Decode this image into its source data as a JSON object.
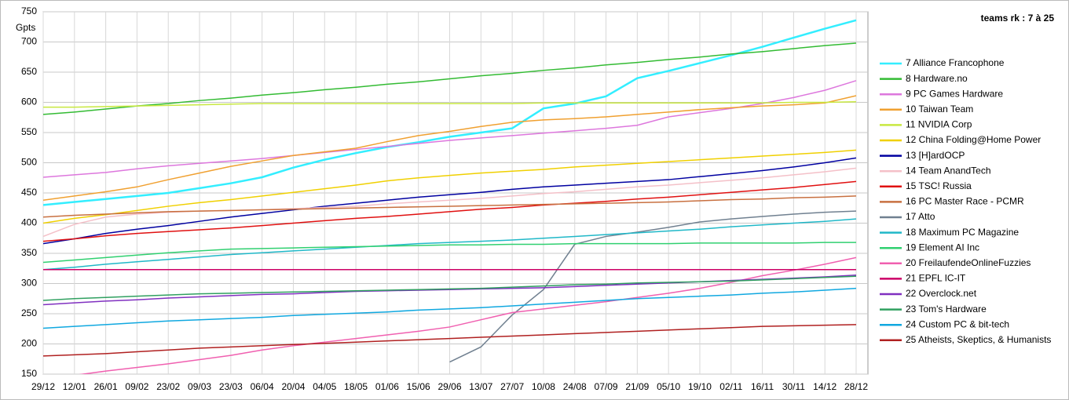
{
  "chart_data": {
    "type": "line",
    "title": "teams rk : 7 à 25",
    "y_label": "Gpts",
    "categories": [
      "29/12",
      "12/01",
      "26/01",
      "09/02",
      "23/02",
      "09/03",
      "23/03",
      "06/04",
      "20/04",
      "04/05",
      "18/05",
      "01/06",
      "15/06",
      "29/06",
      "13/07",
      "27/07",
      "10/08",
      "24/08",
      "07/09",
      "21/09",
      "05/10",
      "19/10",
      "02/11",
      "16/11",
      "30/11",
      "14/12",
      "28/12"
    ],
    "ylim": [
      150,
      750
    ],
    "yticks": [
      150,
      200,
      250,
      300,
      350,
      400,
      450,
      500,
      550,
      600,
      650,
      700,
      750
    ],
    "grid": true,
    "legend": "right",
    "series": [
      {
        "name": "7 Alliance Francophone",
        "color": "#33eeff",
        "values": [
          430,
          435,
          440,
          445,
          450,
          458,
          466,
          476,
          492,
          505,
          516,
          526,
          534,
          543,
          550,
          557,
          590,
          598,
          610,
          640,
          652,
          665,
          678,
          692,
          707,
          722,
          736
        ]
      },
      {
        "name": "8 Hardware.no",
        "color": "#33bb33",
        "values": [
          580,
          584,
          589,
          594,
          598,
          603,
          607,
          612,
          616,
          621,
          625,
          630,
          634,
          639,
          644,
          648,
          653,
          657,
          662,
          666,
          671,
          675,
          680,
          684,
          689,
          694,
          698
        ]
      },
      {
        "name": "9 PC Games Hardware",
        "color": "#dd77dd",
        "values": [
          476,
          480,
          484,
          490,
          495,
          499,
          503,
          507,
          512,
          517,
          522,
          527,
          532,
          537,
          541,
          545,
          549,
          553,
          557,
          562,
          576,
          583,
          590,
          598,
          608,
          620,
          636
        ]
      },
      {
        "name": "10 Taiwan Team",
        "color": "#f0a030",
        "values": [
          438,
          445,
          452,
          460,
          472,
          483,
          494,
          503,
          512,
          518,
          524,
          535,
          545,
          552,
          560,
          567,
          571,
          573,
          576,
          580,
          584,
          588,
          591,
          594,
          596,
          599,
          611
        ]
      },
      {
        "name": "11 NVIDIA Corp",
        "color": "#c8e840",
        "values": [
          592,
          592,
          593,
          594,
          595,
          596,
          597,
          598,
          598,
          598,
          598,
          598,
          598,
          598,
          598,
          598,
          599,
          599,
          599,
          599,
          599,
          599,
          599,
          599,
          600,
          600,
          601
        ]
      },
      {
        "name": "12 China Folding@Home Power",
        "color": "#f0d000",
        "values": [
          400,
          408,
          414,
          421,
          428,
          434,
          439,
          445,
          451,
          457,
          463,
          470,
          475,
          479,
          483,
          486,
          489,
          493,
          496,
          499,
          502,
          505,
          508,
          511,
          514,
          517,
          521
        ]
      },
      {
        "name": "13 [H]ardOCP",
        "color": "#0000a0",
        "values": [
          366,
          374,
          383,
          390,
          396,
          403,
          410,
          416,
          422,
          428,
          433,
          438,
          443,
          447,
          451,
          456,
          460,
          463,
          466,
          469,
          472,
          477,
          482,
          487,
          493,
          500,
          508
        ]
      },
      {
        "name": "14 Team AnandTech",
        "color": "#f4c0c8",
        "values": [
          378,
          398,
          410,
          415,
          418,
          420,
          421,
          422,
          424,
          426,
          428,
          432,
          435,
          438,
          441,
          445,
          449,
          452,
          456,
          460,
          463,
          467,
          471,
          475,
          480,
          485,
          491
        ]
      },
      {
        "name": "15 TSC! Russia",
        "color": "#e01010",
        "values": [
          370,
          374,
          379,
          383,
          386,
          389,
          392,
          396,
          400,
          404,
          408,
          411,
          415,
          419,
          423,
          426,
          430,
          433,
          436,
          440,
          443,
          447,
          451,
          455,
          459,
          464,
          469
        ]
      },
      {
        "name": "16 PC Master Race - PCMR",
        "color": "#c87040",
        "values": [
          410,
          413,
          415,
          417,
          419,
          420,
          421,
          422,
          423,
          424,
          425,
          426,
          427,
          428,
          429,
          430,
          431,
          432,
          433,
          434,
          435,
          437,
          439,
          440,
          442,
          443,
          445
        ]
      },
      {
        "name": "17 Atto",
        "color": "#708090",
        "values": [
          null,
          null,
          null,
          null,
          null,
          null,
          null,
          null,
          null,
          null,
          null,
          null,
          null,
          170,
          195,
          248,
          290,
          365,
          378,
          385,
          393,
          402,
          407,
          411,
          415,
          418,
          420
        ]
      },
      {
        "name": "18 Maximum PC Magazine",
        "color": "#20b8c8",
        "values": [
          323,
          327,
          332,
          336,
          340,
          344,
          348,
          351,
          354,
          357,
          360,
          363,
          366,
          368,
          370,
          372,
          375,
          378,
          381,
          384,
          387,
          390,
          394,
          397,
          400,
          403,
          407
        ]
      },
      {
        "name": "19 Element AI Inc",
        "color": "#30d070",
        "values": [
          335,
          339,
          343,
          347,
          351,
          354,
          357,
          358,
          359,
          360,
          361,
          362,
          363,
          364,
          364,
          365,
          365,
          366,
          366,
          366,
          366,
          367,
          367,
          367,
          367,
          368,
          368
        ]
      },
      {
        "name": "20 FreilaufendeOnlineFuzzies",
        "color": "#f060b0",
        "values": [
          null,
          148,
          155,
          161,
          167,
          174,
          181,
          190,
          197,
          203,
          209,
          215,
          221,
          228,
          240,
          252,
          258,
          264,
          270,
          277,
          284,
          292,
          302,
          313,
          322,
          332,
          343
        ]
      },
      {
        "name": "21 EPFL IC-IT",
        "color": "#cc0066",
        "values": [
          323,
          323,
          323,
          323,
          323,
          323,
          323,
          323,
          323,
          323,
          323,
          323,
          323,
          323,
          323,
          323,
          323,
          323,
          323,
          323,
          323,
          323,
          323,
          323,
          323,
          323,
          323
        ]
      },
      {
        "name": "22 Overclock.net",
        "color": "#8030c0",
        "values": [
          265,
          268,
          271,
          273,
          276,
          278,
          280,
          282,
          283,
          285,
          287,
          288,
          289,
          290,
          291,
          292,
          293,
          295,
          297,
          299,
          301,
          303,
          305,
          307,
          309,
          311,
          314
        ]
      },
      {
        "name": "23 Tom's Hardware",
        "color": "#30a060",
        "values": [
          272,
          275,
          277,
          279,
          281,
          283,
          284,
          285,
          286,
          287,
          288,
          289,
          290,
          291,
          292,
          294,
          296,
          298,
          299,
          301,
          302,
          303,
          304,
          306,
          308,
          310,
          312
        ]
      },
      {
        "name": "24 Custom PC & bit-tech",
        "color": "#10a8e0",
        "values": [
          226,
          229,
          232,
          235,
          238,
          240,
          242,
          244,
          247,
          249,
          251,
          253,
          256,
          258,
          260,
          263,
          266,
          269,
          272,
          275,
          277,
          279,
          281,
          284,
          286,
          289,
          292
        ]
      },
      {
        "name": "25 Atheists, Skeptics, & Humanists",
        "color": "#b02020",
        "values": [
          180,
          182,
          184,
          187,
          190,
          193,
          195,
          197,
          199,
          201,
          203,
          205,
          207,
          209,
          211,
          213,
          215,
          217,
          219,
          221,
          223,
          225,
          227,
          229,
          230,
          231,
          232
        ]
      }
    ]
  }
}
